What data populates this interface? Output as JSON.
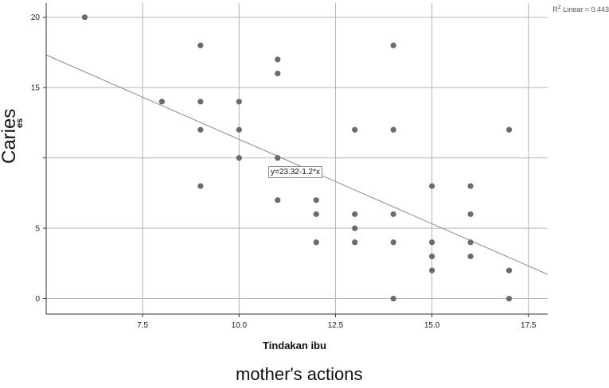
{
  "chart_data": {
    "type": "scatter",
    "title": "",
    "xlabel": "Tindakan ibu",
    "ylabel_fragment": "es",
    "overlay_ylabel": "Caries",
    "caption": "mother's actions",
    "xlim": [
      5.0,
      18.0
    ],
    "ylim": [
      -1.1,
      21.0
    ],
    "x_ticks": [
      7.5,
      10.0,
      12.5,
      15.0,
      17.5
    ],
    "x_tick_labels": [
      "7.5",
      "10.0",
      "12.5",
      "15.0",
      "17.5"
    ],
    "y_ticks": [
      0,
      5,
      10,
      15,
      20
    ],
    "y_tick_labels": [
      "0",
      "5",
      "",
      "15",
      "20"
    ],
    "grid": true,
    "points": [
      {
        "x": 6,
        "y": 20
      },
      {
        "x": 8,
        "y": 14
      },
      {
        "x": 9,
        "y": 18
      },
      {
        "x": 9,
        "y": 14
      },
      {
        "x": 9,
        "y": 12
      },
      {
        "x": 9,
        "y": 8
      },
      {
        "x": 10,
        "y": 14
      },
      {
        "x": 10,
        "y": 12
      },
      {
        "x": 10,
        "y": 10
      },
      {
        "x": 11,
        "y": 17
      },
      {
        "x": 11,
        "y": 16
      },
      {
        "x": 11,
        "y": 10
      },
      {
        "x": 11,
        "y": 7
      },
      {
        "x": 12,
        "y": 7
      },
      {
        "x": 12,
        "y": 6
      },
      {
        "x": 12,
        "y": 4
      },
      {
        "x": 13,
        "y": 12
      },
      {
        "x": 13,
        "y": 6
      },
      {
        "x": 13,
        "y": 5
      },
      {
        "x": 13,
        "y": 4
      },
      {
        "x": 14,
        "y": 18
      },
      {
        "x": 14,
        "y": 12
      },
      {
        "x": 14,
        "y": 6
      },
      {
        "x": 14,
        "y": 4
      },
      {
        "x": 14,
        "y": 0
      },
      {
        "x": 15,
        "y": 8
      },
      {
        "x": 15,
        "y": 4
      },
      {
        "x": 15,
        "y": 3
      },
      {
        "x": 15,
        "y": 2
      },
      {
        "x": 16,
        "y": 8
      },
      {
        "x": 16,
        "y": 6
      },
      {
        "x": 16,
        "y": 4
      },
      {
        "x": 16,
        "y": 3
      },
      {
        "x": 17,
        "y": 12
      },
      {
        "x": 17,
        "y": 2
      },
      {
        "x": 17,
        "y": 0
      }
    ],
    "fit_line": {
      "intercept": 23.32,
      "slope": -1.2
    },
    "fit_label": "y=23.32-1.2*x",
    "r2_label": "Linear = 0.443",
    "colors": {
      "points": "#6b6b6b",
      "grid": "#b4b4b4",
      "fit_line": "#8a8a8a",
      "axis": "#333333"
    }
  }
}
